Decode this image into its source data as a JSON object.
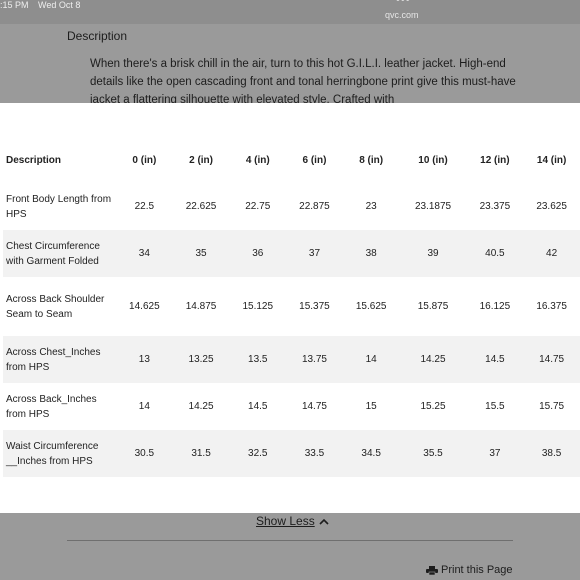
{
  "statusbar": {
    "time": ":15 PM",
    "date": "Wed Oct 8",
    "dots": "•••",
    "url": "qvc.com"
  },
  "page": {
    "description_heading": "Description",
    "description_text": "When there's a brisk chill in the air, turn to this hot G.I.L.I. leather jacket. High-end details like the open cascading front and tonal herringbone print give this must-have jacket a flattering silhouette with elevated style. Crafted with",
    "show_less": "Show Less",
    "print": "Print this Page"
  },
  "size_chart": {
    "headers": [
      "Description",
      "0 (in)",
      "2 (in)",
      "4 (in)",
      "6 (in)",
      "8 (in)",
      "10 (in)",
      "12 (in)",
      "14 (in)"
    ],
    "rows": [
      {
        "label": "Front Body Length from HPS",
        "values": [
          "22.5",
          "22.625",
          "22.75",
          "22.875",
          "23",
          "23.1875",
          "23.375",
          "23.625"
        ]
      },
      {
        "label": "Chest Circumference with Garment Folded",
        "values": [
          "34",
          "35",
          "36",
          "37",
          "38",
          "39",
          "40.5",
          "42"
        ]
      },
      {
        "label": "Across Back Shoulder Seam to Seam",
        "values": [
          "14.625",
          "14.875",
          "15.125",
          "15.375",
          "15.625",
          "15.875",
          "16.125",
          "16.375"
        ]
      },
      {
        "label": "Across Chest_Inches from HPS",
        "values": [
          "13",
          "13.25",
          "13.5",
          "13.75",
          "14",
          "14.25",
          "14.5",
          "14.75"
        ]
      },
      {
        "label": "Across Back_Inches from HPS",
        "values": [
          "14",
          "14.25",
          "14.5",
          "14.75",
          "15",
          "15.25",
          "15.5",
          "15.75"
        ]
      },
      {
        "label": "Waist Circumference __Inches from HPS",
        "values": [
          "30.5",
          "31.5",
          "32.5",
          "33.5",
          "34.5",
          "35.5",
          "37",
          "38.5"
        ]
      }
    ]
  }
}
